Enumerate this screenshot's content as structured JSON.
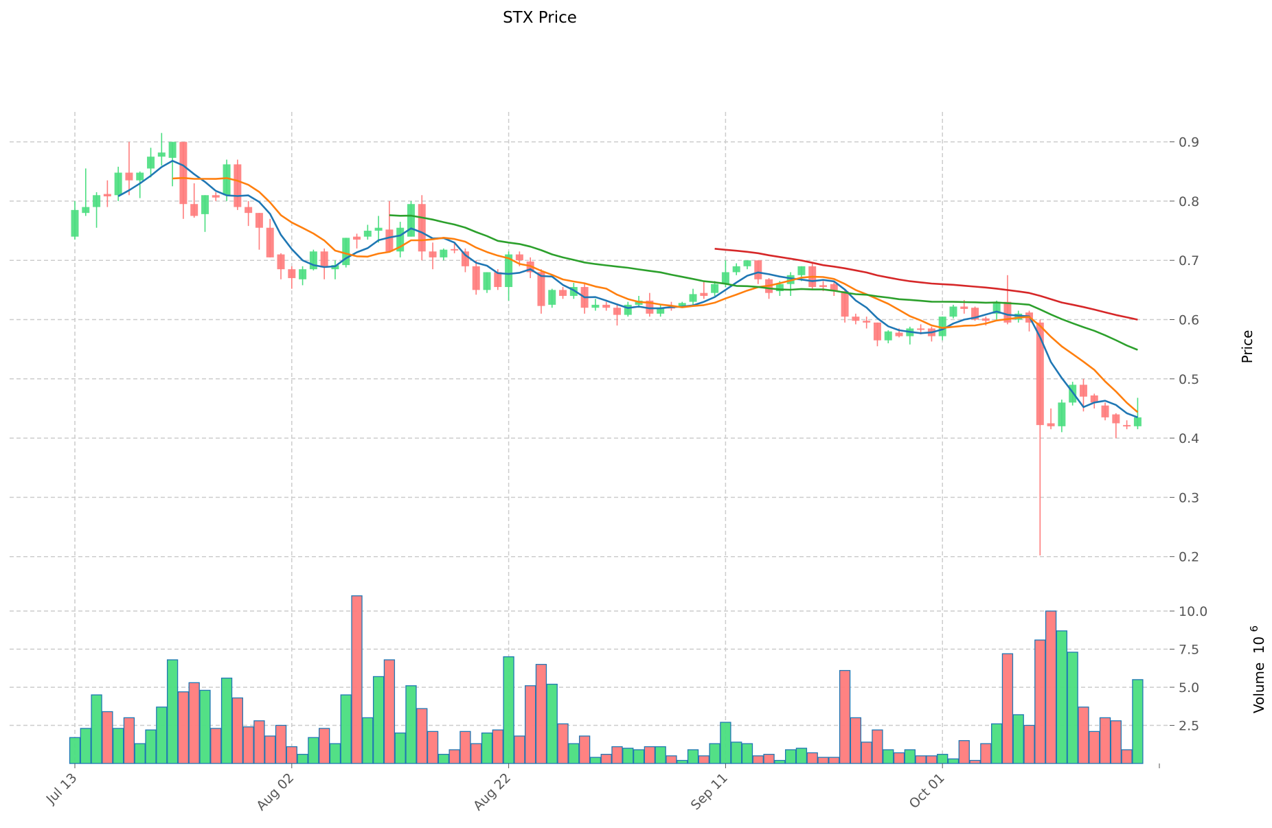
{
  "chart_data": {
    "type": "candlestick",
    "title": "STX Price",
    "ylabel": "Price",
    "volume_label": "Volume",
    "volume_multiplier": "10",
    "volume_exponent": "6",
    "x_tick_labels": [
      {
        "index": 0,
        "label": "Jul 13"
      },
      {
        "index": 20,
        "label": "Aug 02"
      },
      {
        "index": 40,
        "label": "Aug 22"
      },
      {
        "index": 60,
        "label": "Sep 11"
      },
      {
        "index": 80,
        "label": "Oct 01"
      }
    ],
    "price_ticks": [
      "0.2",
      "0.3",
      "0.4",
      "0.5",
      "0.6",
      "0.7",
      "0.8",
      "0.9"
    ],
    "volume_ticks": [
      "2.5",
      "5.0",
      "7.5",
      "10.0"
    ],
    "ylim": [
      0.17,
      0.95
    ],
    "volume_ylim": [
      0,
      12
    ],
    "moving_averages": [
      {
        "window": 5,
        "color": "#1f77b4"
      },
      {
        "window": 10,
        "color": "#ff7f0e"
      },
      {
        "window": 30,
        "color": "#2ca02c"
      },
      {
        "window": 60,
        "color": "#d62728"
      }
    ],
    "colors": {
      "up": "#2ecc71",
      "down": "#ff6b6b",
      "volume_edge": "#1f77b4"
    },
    "ohlc": [
      [
        0.74,
        0.8,
        0.735,
        0.785
      ],
      [
        0.78,
        0.855,
        0.775,
        0.79
      ],
      [
        0.79,
        0.815,
        0.755,
        0.81
      ],
      [
        0.812,
        0.835,
        0.79,
        0.808
      ],
      [
        0.81,
        0.858,
        0.8,
        0.848
      ],
      [
        0.848,
        0.9,
        0.81,
        0.835
      ],
      [
        0.835,
        0.85,
        0.805,
        0.848
      ],
      [
        0.855,
        0.89,
        0.84,
        0.875
      ],
      [
        0.875,
        0.915,
        0.86,
        0.882
      ],
      [
        0.873,
        0.9,
        0.825,
        0.9
      ],
      [
        0.9,
        0.9,
        0.77,
        0.795
      ],
      [
        0.795,
        0.83,
        0.772,
        0.775
      ],
      [
        0.778,
        0.81,
        0.748,
        0.81
      ],
      [
        0.81,
        0.815,
        0.8,
        0.806
      ],
      [
        0.81,
        0.87,
        0.8,
        0.862
      ],
      [
        0.862,
        0.87,
        0.785,
        0.79
      ],
      [
        0.79,
        0.8,
        0.758,
        0.78
      ],
      [
        0.78,
        0.78,
        0.718,
        0.755
      ],
      [
        0.755,
        0.77,
        0.705,
        0.705
      ],
      [
        0.71,
        0.712,
        0.668,
        0.685
      ],
      [
        0.685,
        0.69,
        0.652,
        0.67
      ],
      [
        0.668,
        0.69,
        0.658,
        0.685
      ],
      [
        0.685,
        0.718,
        0.683,
        0.715
      ],
      [
        0.715,
        0.72,
        0.668,
        0.688
      ],
      [
        0.685,
        0.7,
        0.668,
        0.692
      ],
      [
        0.692,
        0.738,
        0.688,
        0.738
      ],
      [
        0.74,
        0.745,
        0.72,
        0.735
      ],
      [
        0.74,
        0.76,
        0.735,
        0.75
      ],
      [
        0.75,
        0.775,
        0.73,
        0.755
      ],
      [
        0.752,
        0.8,
        0.715,
        0.715
      ],
      [
        0.715,
        0.765,
        0.705,
        0.755
      ],
      [
        0.74,
        0.8,
        0.74,
        0.795
      ],
      [
        0.795,
        0.81,
        0.7,
        0.715
      ],
      [
        0.715,
        0.73,
        0.685,
        0.705
      ],
      [
        0.705,
        0.72,
        0.7,
        0.718
      ],
      [
        0.719,
        0.73,
        0.712,
        0.717
      ],
      [
        0.715,
        0.72,
        0.68,
        0.69
      ],
      [
        0.69,
        0.7,
        0.642,
        0.65
      ],
      [
        0.65,
        0.68,
        0.645,
        0.68
      ],
      [
        0.68,
        0.685,
        0.65,
        0.655
      ],
      [
        0.655,
        0.715,
        0.632,
        0.71
      ],
      [
        0.71,
        0.715,
        0.69,
        0.7
      ],
      [
        0.698,
        0.705,
        0.67,
        0.68
      ],
      [
        0.68,
        0.685,
        0.61,
        0.623
      ],
      [
        0.625,
        0.652,
        0.62,
        0.65
      ],
      [
        0.65,
        0.655,
        0.635,
        0.64
      ],
      [
        0.64,
        0.662,
        0.635,
        0.655
      ],
      [
        0.655,
        0.66,
        0.61,
        0.62
      ],
      [
        0.62,
        0.635,
        0.615,
        0.625
      ],
      [
        0.625,
        0.63,
        0.615,
        0.62
      ],
      [
        0.62,
        0.625,
        0.59,
        0.608
      ],
      [
        0.608,
        0.63,
        0.605,
        0.625
      ],
      [
        0.625,
        0.64,
        0.62,
        0.632
      ],
      [
        0.632,
        0.645,
        0.605,
        0.61
      ],
      [
        0.61,
        0.625,
        0.605,
        0.62
      ],
      [
        0.621,
        0.63,
        0.615,
        0.619
      ],
      [
        0.622,
        0.63,
        0.62,
        0.628
      ],
      [
        0.63,
        0.652,
        0.625,
        0.643
      ],
      [
        0.645,
        0.665,
        0.635,
        0.64
      ],
      [
        0.645,
        0.665,
        0.64,
        0.66
      ],
      [
        0.66,
        0.7,
        0.655,
        0.68
      ],
      [
        0.68,
        0.695,
        0.675,
        0.69
      ],
      [
        0.69,
        0.7,
        0.685,
        0.7
      ],
      [
        0.7,
        0.7,
        0.66,
        0.668
      ],
      [
        0.668,
        0.67,
        0.635,
        0.645
      ],
      [
        0.648,
        0.665,
        0.64,
        0.66
      ],
      [
        0.66,
        0.68,
        0.64,
        0.675
      ],
      [
        0.675,
        0.69,
        0.665,
        0.69
      ],
      [
        0.69,
        0.695,
        0.65,
        0.655
      ],
      [
        0.658,
        0.665,
        0.648,
        0.655
      ],
      [
        0.66,
        0.665,
        0.64,
        0.648
      ],
      [
        0.648,
        0.65,
        0.595,
        0.605
      ],
      [
        0.605,
        0.61,
        0.592,
        0.598
      ],
      [
        0.598,
        0.605,
        0.585,
        0.595
      ],
      [
        0.595,
        0.595,
        0.555,
        0.565
      ],
      [
        0.565,
        0.582,
        0.56,
        0.58
      ],
      [
        0.578,
        0.585,
        0.57,
        0.572
      ],
      [
        0.572,
        0.588,
        0.558,
        0.585
      ],
      [
        0.585,
        0.592,
        0.575,
        0.583
      ],
      [
        0.585,
        0.588,
        0.563,
        0.572
      ],
      [
        0.572,
        0.605,
        0.565,
        0.605
      ],
      [
        0.605,
        0.625,
        0.602,
        0.622
      ],
      [
        0.622,
        0.633,
        0.61,
        0.618
      ],
      [
        0.62,
        0.622,
        0.598,
        0.6
      ],
      [
        0.602,
        0.605,
        0.59,
        0.598
      ],
      [
        0.61,
        0.632,
        0.6,
        0.63
      ],
      [
        0.63,
        0.675,
        0.592,
        0.595
      ],
      [
        0.6,
        0.615,
        0.595,
        0.61
      ],
      [
        0.612,
        0.615,
        0.58,
        0.595
      ],
      [
        0.595,
        0.6,
        0.202,
        0.422
      ],
      [
        0.425,
        0.45,
        0.415,
        0.42
      ],
      [
        0.42,
        0.465,
        0.41,
        0.46
      ],
      [
        0.46,
        0.495,
        0.455,
        0.49
      ],
      [
        0.49,
        0.5,
        0.445,
        0.47
      ],
      [
        0.472,
        0.475,
        0.45,
        0.46
      ],
      [
        0.455,
        0.46,
        0.43,
        0.435
      ],
      [
        0.44,
        0.442,
        0.4,
        0.425
      ],
      [
        0.422,
        0.43,
        0.415,
        0.42
      ],
      [
        0.42,
        0.468,
        0.415,
        0.435
      ]
    ],
    "volume": [
      1.7,
      2.3,
      4.5,
      3.4,
      2.3,
      3.0,
      1.3,
      2.2,
      3.7,
      6.8,
      4.7,
      5.3,
      4.8,
      2.3,
      5.6,
      4.3,
      2.4,
      2.8,
      1.8,
      2.5,
      1.1,
      0.6,
      1.7,
      2.3,
      1.3,
      4.5,
      11.0,
      3.0,
      5.7,
      6.8,
      2.0,
      5.1,
      3.6,
      2.1,
      0.6,
      0.9,
      2.1,
      1.3,
      2.0,
      2.2,
      7.0,
      1.8,
      5.1,
      6.5,
      5.2,
      2.6,
      1.3,
      1.8,
      0.4,
      0.6,
      1.1,
      1.0,
      0.9,
      1.1,
      1.1,
      0.5,
      0.2,
      0.9,
      0.5,
      1.3,
      2.7,
      1.4,
      1.3,
      0.5,
      0.6,
      0.2,
      0.9,
      1.0,
      0.7,
      0.4,
      0.4,
      6.1,
      3.0,
      1.4,
      2.2,
      0.9,
      0.7,
      0.9,
      0.5,
      0.5,
      0.6,
      0.3,
      1.5,
      0.2,
      1.3,
      2.6,
      7.2,
      3.2,
      2.5,
      8.1,
      10.0,
      8.7,
      7.3,
      3.7,
      2.1,
      3.0,
      2.8,
      0.9,
      5.5
    ]
  }
}
